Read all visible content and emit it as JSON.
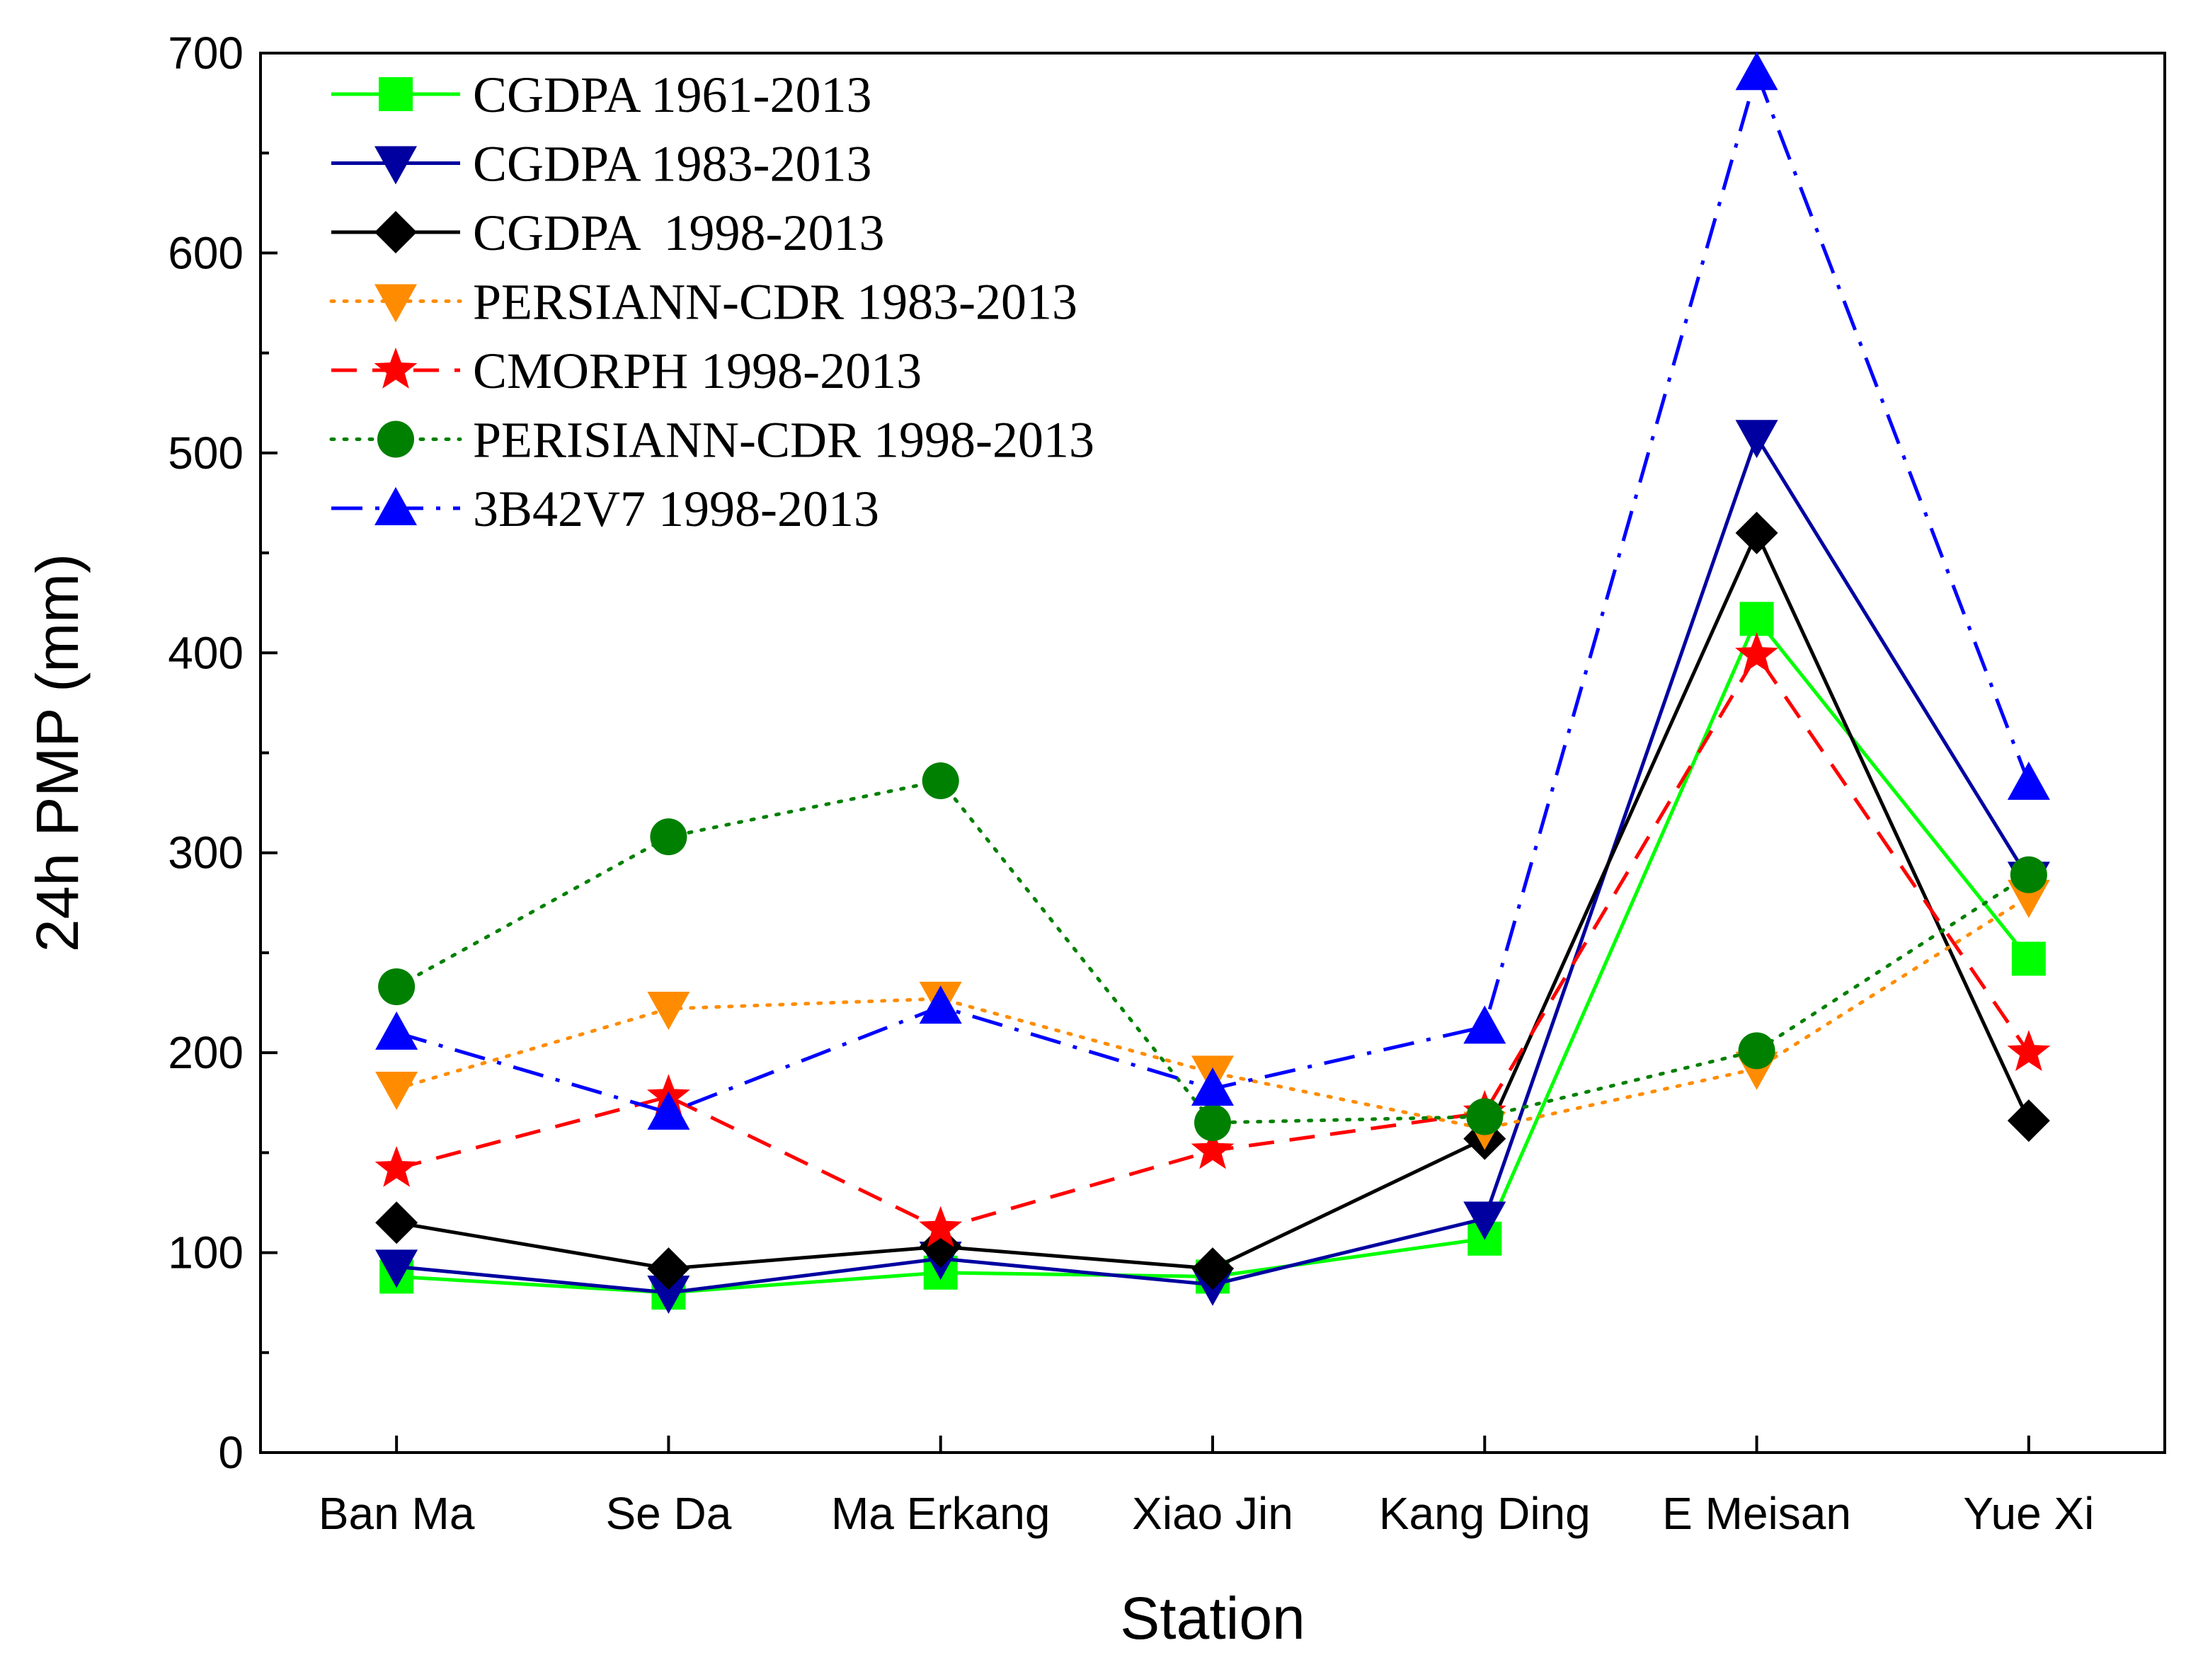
{
  "chart_data": {
    "type": "line",
    "xlabel": "Station",
    "ylabel": "24h PMP (mm)",
    "ylim": [
      0,
      700
    ],
    "yticks": [
      0,
      100,
      200,
      300,
      400,
      500,
      600,
      700
    ],
    "grid": false,
    "legend_position": "top-left",
    "categories": [
      "Ban Ma",
      "Se Da",
      "Ma Erkang",
      "Xiao Jin",
      "Kang Ding",
      "E Meisan",
      "Yue Xi"
    ],
    "series": [
      {
        "name": "CGDPA 1961-2013",
        "color": "#00ff00",
        "marker": "square",
        "dash": "solid",
        "values": [
          88,
          80,
          90,
          88,
          107,
          417,
          247
        ]
      },
      {
        "name": "CGDPA 1983-2013",
        "color": "#0000a0",
        "marker": "triangle-down",
        "dash": "solid",
        "values": [
          93,
          80,
          97,
          84,
          117,
          508,
          287
        ]
      },
      {
        "name": "CGDPA  1998-2013",
        "color": "#000000",
        "marker": "diamond",
        "dash": "solid",
        "values": [
          115,
          92,
          103,
          92,
          157,
          460,
          166
        ]
      },
      {
        "name": "PERSIANN-CDR 1983-2013",
        "color": "#ff8c00",
        "marker": "triangle-down",
        "dash": "dot",
        "values": [
          182,
          222,
          227,
          190,
          162,
          192,
          278
        ]
      },
      {
        "name": "CMORPH 1998-2013",
        "color": "#ff0000",
        "marker": "star",
        "dash": "dash",
        "values": [
          142,
          178,
          112,
          151,
          170,
          399,
          200
        ]
      },
      {
        "name": "PERISIANN-CDR 1998-2013",
        "color": "#008000",
        "marker": "circle",
        "dash": "dot",
        "values": [
          233,
          308,
          336,
          165,
          168,
          201,
          289
        ]
      },
      {
        "name": "3B42V7 1998-2013",
        "color": "#0000ff",
        "marker": "triangle-up",
        "dash": "dashdot",
        "values": [
          210,
          170,
          223,
          182,
          213,
          690,
          335
        ]
      }
    ]
  }
}
